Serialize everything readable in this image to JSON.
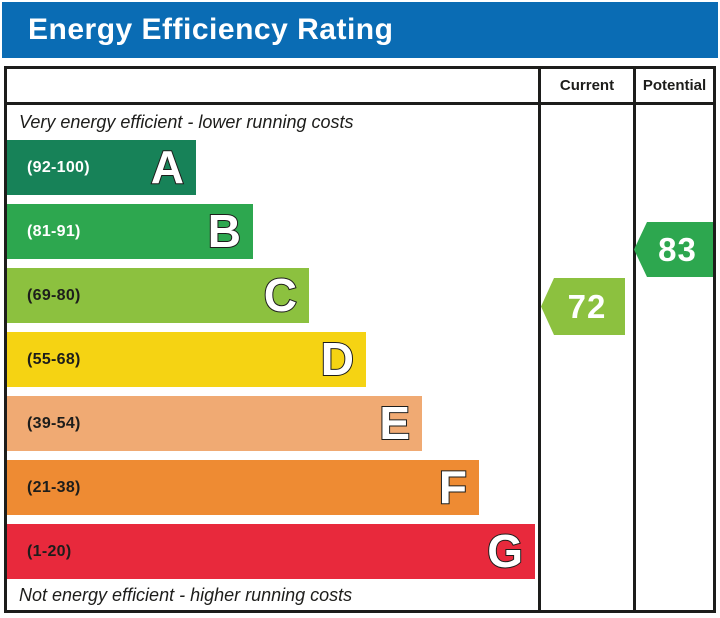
{
  "title": "Energy Efficiency Rating",
  "columns": {
    "current": "Current",
    "potential": "Potential"
  },
  "notes": {
    "top": "Very energy efficient - lower running costs",
    "bottom": "Not energy efficient - higher running costs"
  },
  "colors": {
    "title_bg": "#0a6cb4",
    "title_text": "#ffffff",
    "border": "#1d1d1b",
    "current_marker": "#8cc13f",
    "potential_marker": "#2da74f"
  },
  "chart_data": {
    "type": "bar",
    "subtype": "epc-energy-efficiency-rating",
    "title": "Energy Efficiency Rating",
    "bands": [
      {
        "letter": "A",
        "range_label": "(92-100)",
        "min": 92,
        "max": 100,
        "color": "#178258",
        "label_color": "#ffffff"
      },
      {
        "letter": "B",
        "range_label": "(81-91)",
        "min": 81,
        "max": 91,
        "color": "#2da74f",
        "label_color": "#ffffff"
      },
      {
        "letter": "C",
        "range_label": "(69-80)",
        "min": 69,
        "max": 80,
        "color": "#8cc13f",
        "label_color": "#1d1d1b"
      },
      {
        "letter": "D",
        "range_label": "(55-68)",
        "min": 55,
        "max": 68,
        "color": "#f5d313",
        "label_color": "#1d1d1b"
      },
      {
        "letter": "E",
        "range_label": "(39-54)",
        "min": 39,
        "max": 54,
        "color": "#f0aa73",
        "label_color": "#1d1d1b"
      },
      {
        "letter": "F",
        "range_label": "(21-38)",
        "min": 21,
        "max": 38,
        "color": "#ee8b33",
        "label_color": "#1d1d1b"
      },
      {
        "letter": "G",
        "range_label": "(1-20)",
        "min": 1,
        "max": 20,
        "color": "#e8293c",
        "label_color": "#1d1d1b"
      }
    ],
    "current": {
      "value": 72,
      "band": "C",
      "color": "#8cc13f"
    },
    "potential": {
      "value": 83,
      "band": "B",
      "color": "#2da74f"
    }
  }
}
